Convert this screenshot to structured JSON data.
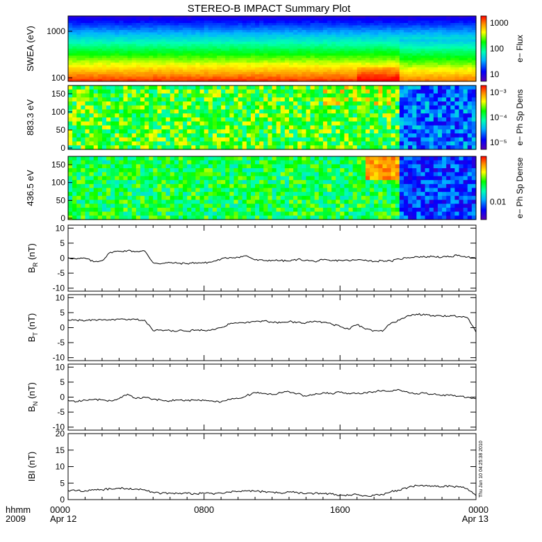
{
  "title": "STEREO-B IMPACT Summary Plot",
  "stamp": "Thu Jun 10 04:25:38 2010",
  "x_axis": {
    "row1_label": "hhmm",
    "row2_label": "2009",
    "ticks": [
      {
        "hour": 0,
        "top": "0000",
        "bottom": "Apr 12"
      },
      {
        "hour": 8,
        "top": "0800",
        "bottom": ""
      },
      {
        "hour": 16,
        "top": "1600",
        "bottom": ""
      },
      {
        "hour": 24,
        "top": "0000",
        "bottom": "Apr 13"
      }
    ],
    "range_hours": [
      0,
      24
    ]
  },
  "spectrograms": [
    {
      "ylabel": "SWEA (eV)",
      "cblabel": "e− Flux",
      "yticks": [
        "1000",
        "100"
      ],
      "cbticks": [
        "1000",
        "100",
        "10"
      ],
      "type": "energy"
    },
    {
      "ylabel": "883.3 eV",
      "cblabel": "e− Ph Sp Dens",
      "yticks": [
        "150",
        "100",
        "50",
        "0"
      ],
      "cbticks": [
        "10⁻³",
        "10⁻⁴",
        "10⁻⁵"
      ],
      "type": "pitch883"
    },
    {
      "ylabel": "436.5 eV",
      "cblabel": "e− Ph Sp Dense",
      "yticks": [
        "150",
        "100",
        "50",
        "0"
      ],
      "cbticks": [
        "0.01"
      ],
      "type": "pitch436"
    }
  ],
  "chart_data": [
    {
      "type": "line",
      "name": "BR",
      "ylabel_main": "B",
      "ylabel_sub": "R",
      "ylabel_unit": "(nT)",
      "ylim": [
        -11,
        11
      ],
      "yticks": [
        10,
        5,
        0,
        -5,
        -10
      ],
      "x": [
        0,
        0.5,
        1,
        1.5,
        2,
        2.5,
        3,
        3.5,
        4,
        4.5,
        5,
        5.5,
        6,
        6.5,
        7,
        7.5,
        8,
        8.5,
        9,
        9.5,
        10,
        10.5,
        11,
        11.5,
        12,
        12.5,
        13,
        13.5,
        14,
        14.5,
        15,
        15.5,
        16,
        16.5,
        17,
        17.5,
        18,
        18.5,
        19,
        19.5,
        20,
        20.5,
        21,
        21.5,
        22,
        22.5,
        23,
        23.5,
        24
      ],
      "y": [
        0.2,
        -0.3,
        0,
        -1.2,
        -0.8,
        2,
        2.3,
        2.5,
        2.2,
        2.4,
        -1.5,
        -1.8,
        -1.5,
        -1.7,
        -1.8,
        -1.5,
        -1.6,
        -1.2,
        -0.3,
        0.2,
        0.3,
        0.8,
        -0.6,
        -0.8,
        -0.7,
        -0.8,
        -1,
        -0.4,
        -0.7,
        -1.1,
        -0.6,
        -0.9,
        -0.7,
        -0.8,
        -0.6,
        -0.6,
        -1.1,
        -0.8,
        -1,
        -0.3,
        0.2,
        0.5,
        0.4,
        0.6,
        0.3,
        0.5,
        1,
        0.4,
        -0.2
      ]
    },
    {
      "type": "line",
      "name": "BT",
      "ylabel_main": "B",
      "ylabel_sub": "T",
      "ylabel_unit": "(nT)",
      "ylim": [
        -11,
        11
      ],
      "yticks": [
        10,
        5,
        0,
        -5,
        -10
      ],
      "x": [
        0,
        0.5,
        1,
        1.5,
        2,
        2.5,
        3,
        3.5,
        4,
        4.5,
        5,
        5.5,
        6,
        6.5,
        7,
        7.5,
        8,
        8.5,
        9,
        9.5,
        10,
        10.5,
        11,
        11.5,
        12,
        12.5,
        13,
        13.5,
        14,
        14.5,
        15,
        15.5,
        16,
        16.5,
        17,
        17.5,
        18,
        18.5,
        19,
        19.5,
        20,
        20.5,
        21,
        21.5,
        22,
        22.5,
        23,
        23.5,
        24
      ],
      "y": [
        2.6,
        2.5,
        2.3,
        2.6,
        2.5,
        2.5,
        2.8,
        2.6,
        2.7,
        2.5,
        -1,
        -0.8,
        -1,
        -1,
        -1.2,
        -0.8,
        -0.9,
        -0.5,
        0,
        1.2,
        1.5,
        1.8,
        2,
        2.2,
        1.8,
        1.6,
        2,
        1.8,
        1.6,
        2.2,
        1.8,
        1.2,
        0.4,
        -0.5,
        1,
        -0.5,
        -1,
        -1.2,
        1.5,
        2.5,
        4,
        4.5,
        4.2,
        4,
        3.8,
        4,
        3.7,
        3.3,
        -1.5
      ]
    },
    {
      "type": "line",
      "name": "BN",
      "ylabel_main": "B",
      "ylabel_sub": "N",
      "ylabel_unit": "(nT)",
      "ylim": [
        -11,
        11
      ],
      "yticks": [
        10,
        5,
        0,
        -5,
        -10
      ],
      "x": [
        0,
        0.5,
        1,
        1.5,
        2,
        2.5,
        3,
        3.5,
        4,
        4.5,
        5,
        5.5,
        6,
        6.5,
        7,
        7.5,
        8,
        8.5,
        9,
        9.5,
        10,
        10.5,
        11,
        11.5,
        12,
        12.5,
        13,
        13.5,
        14,
        14.5,
        15,
        15.5,
        16,
        16.5,
        17,
        17.5,
        18,
        18.5,
        19,
        19.5,
        20,
        20.5,
        21,
        21.5,
        22,
        22.5,
        23,
        23.5,
        24
      ],
      "y": [
        -1,
        -1.5,
        -1,
        -0.8,
        -0.9,
        -1.2,
        -0.5,
        1,
        -0.5,
        0,
        -0.7,
        -1,
        -1.2,
        -1,
        -1.1,
        -1,
        -1.1,
        -1.3,
        -1.6,
        -0.8,
        -0.5,
        0.5,
        1.5,
        1.2,
        0.8,
        1.5,
        1.8,
        1.2,
        0.3,
        0.8,
        1.5,
        1.2,
        1.6,
        1.3,
        1.2,
        1.5,
        1.8,
        2.2,
        2.0,
        2.4,
        1.6,
        1.2,
        1.3,
        1.0,
        0.5,
        0.8,
        0.3,
        0,
        -0.5
      ]
    },
    {
      "type": "line",
      "name": "|B|",
      "ylabel_main": "IBI",
      "ylabel_sub": "",
      "ylabel_unit": "(nT)",
      "ylim": [
        0,
        20
      ],
      "yticks": [
        20,
        15,
        10,
        5,
        0
      ],
      "x": [
        0,
        0.5,
        1,
        1.5,
        2,
        2.5,
        3,
        3.5,
        4,
        4.5,
        5,
        5.5,
        6,
        6.5,
        7,
        7.5,
        8,
        8.5,
        9,
        9.5,
        10,
        10.5,
        11,
        11.5,
        12,
        12.5,
        13,
        13.5,
        14,
        14.5,
        15,
        15.5,
        16,
        16.5,
        17,
        17.5,
        18,
        18.5,
        19,
        19.5,
        20,
        20.5,
        21,
        21.5,
        22,
        22.5,
        23,
        23.5,
        24
      ],
      "y": [
        2.8,
        2.7,
        2.7,
        2.9,
        3.0,
        3.3,
        3.5,
        3.3,
        3.2,
        3.0,
        2.2,
        1.9,
        2.0,
        1.8,
        1.9,
        1.8,
        1.9,
        1.8,
        2.0,
        2.3,
        2.5,
        2.6,
        2.5,
        2.4,
        2.3,
        2.0,
        2.3,
        2.1,
        1.8,
        1.9,
        1.9,
        1.7,
        1.4,
        1.3,
        1.5,
        1.2,
        1.3,
        1.5,
        2.4,
        2.8,
        3.7,
        4.3,
        4.2,
        4.0,
        3.9,
        4.1,
        3.8,
        3.3,
        1.2
      ]
    }
  ]
}
